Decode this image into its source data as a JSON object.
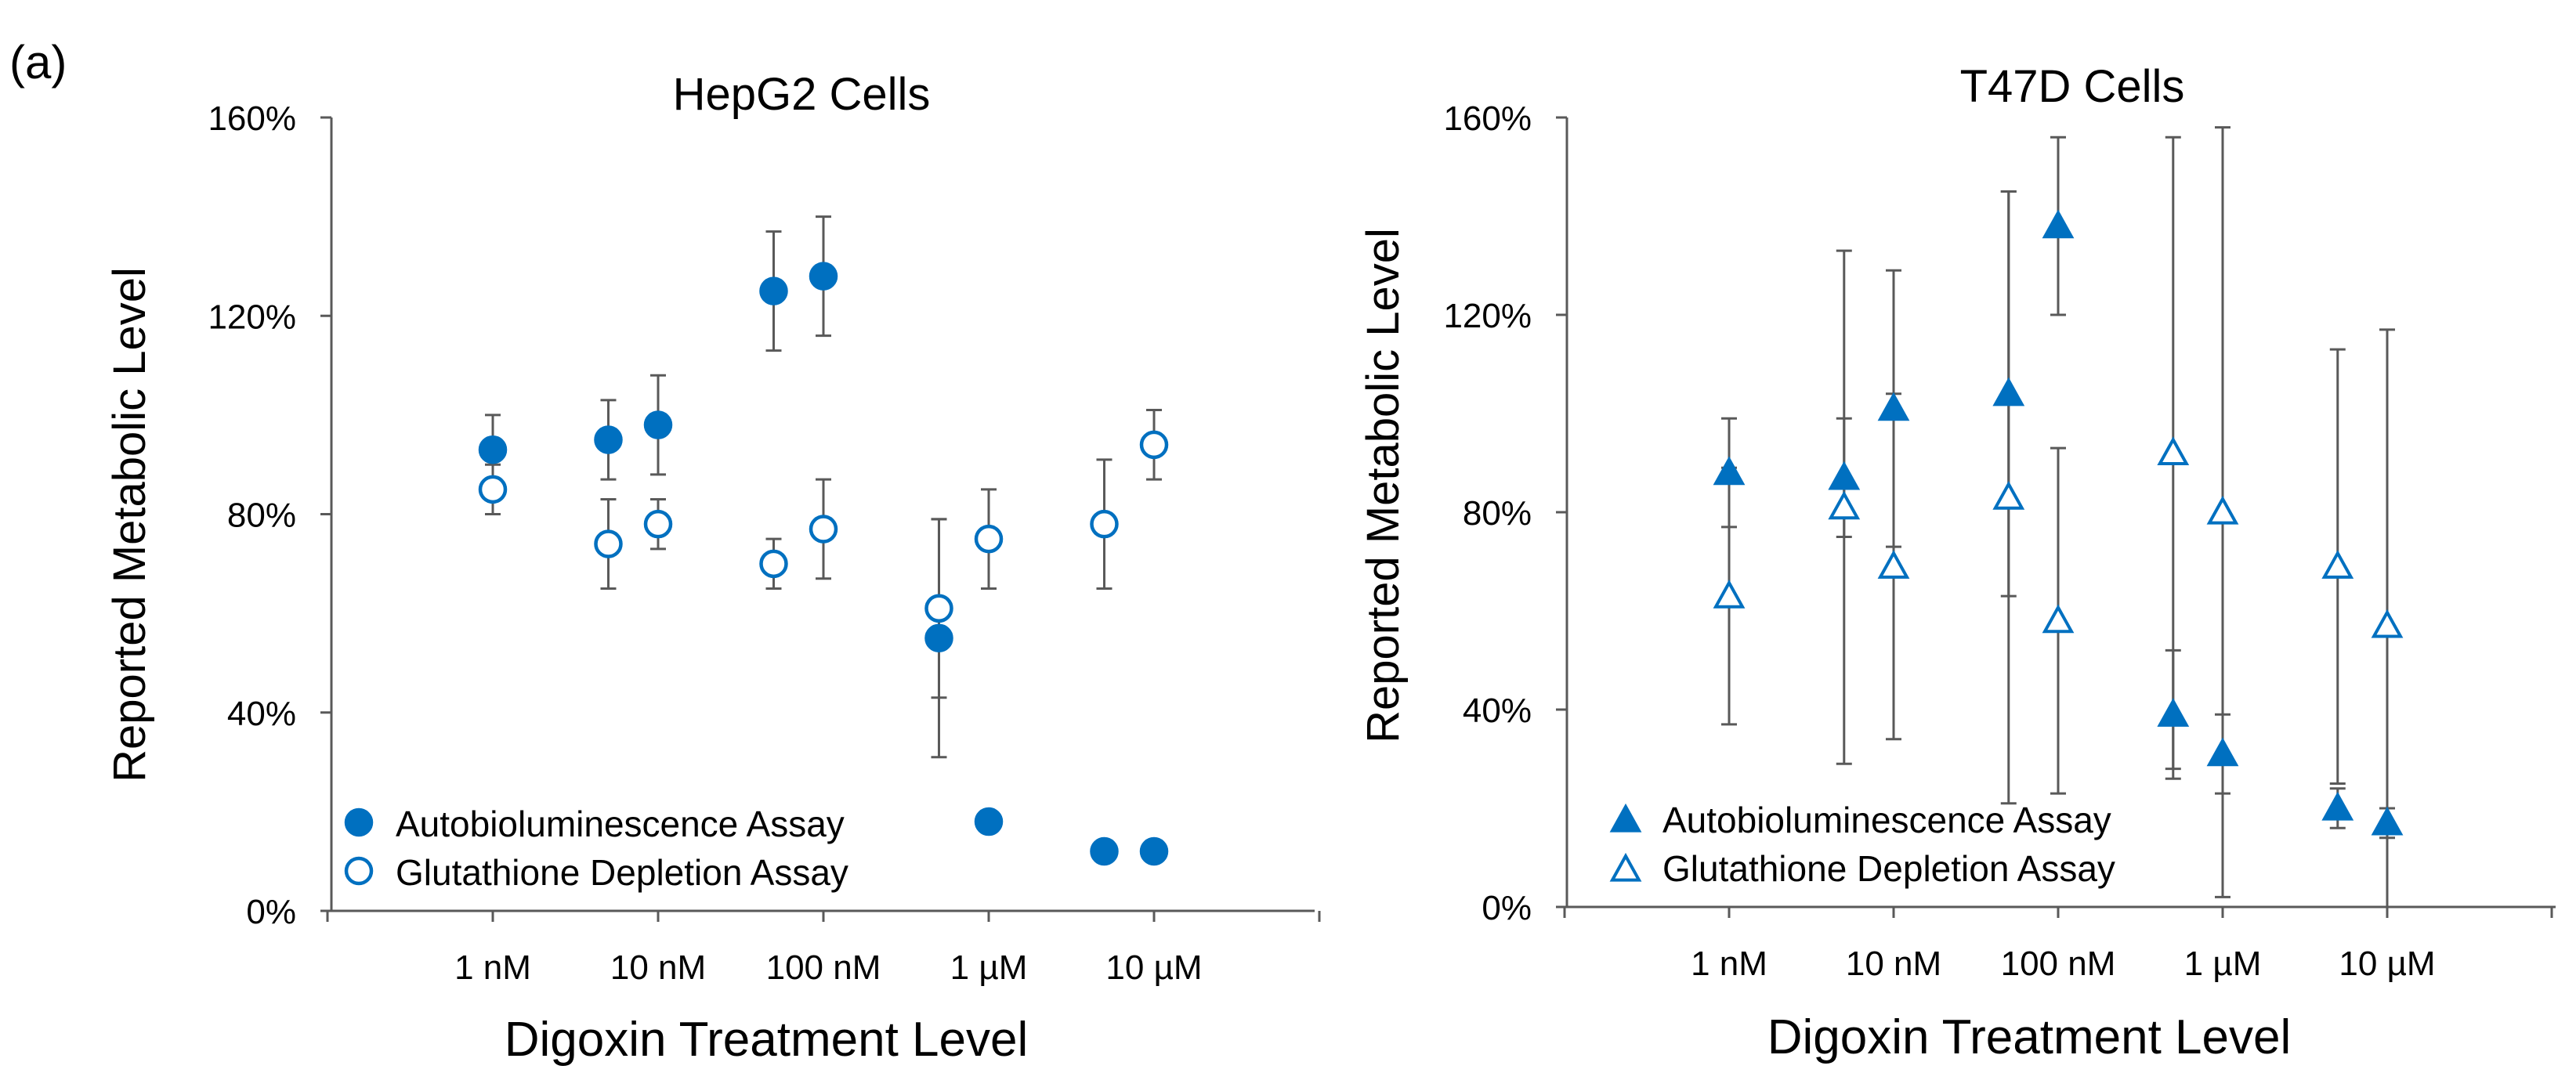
{
  "panel_label": "(a)",
  "accent_color": "#0070C0",
  "chart_data": [
    {
      "type": "scatter",
      "title": "HepG2 Cells",
      "xlabel": "Digoxin Treatment Level",
      "ylabel": "Reported Metabolic Level",
      "x_scale": "log",
      "xlim": [
        "0.1 nM",
        "100 µM"
      ],
      "ylim": [
        0,
        1.6
      ],
      "y_ticks": [
        "0%",
        "40%",
        "80%",
        "120%",
        "160%"
      ],
      "x_ticks": [
        {
          "value": 1,
          "label": "1 nM"
        },
        {
          "value": 10,
          "label": "10 nM"
        },
        {
          "value": 100,
          "label": "100 nM"
        },
        {
          "value": 1000,
          "label": "1 µM"
        },
        {
          "value": 10000,
          "label": "10 µM"
        }
      ],
      "grid": false,
      "legend_position": "bottom-left",
      "series": [
        {
          "name": "Autobioluminescence Assay",
          "marker": "filled-circle",
          "color": "#0070C0",
          "x": [
            1,
            5,
            10,
            50,
            100,
            500,
            1000,
            5000,
            10000
          ],
          "y": [
            0.93,
            0.95,
            0.98,
            1.25,
            1.28,
            0.55,
            0.18,
            0.12,
            0.12
          ],
          "err": [
            0.07,
            0.08,
            0.1,
            0.12,
            0.12,
            0.24,
            0.02,
            0,
            0
          ]
        },
        {
          "name": "Glutathione Depletion Assay",
          "marker": "open-circle",
          "color": "#0070C0",
          "x": [
            1,
            5,
            10,
            50,
            100,
            500,
            1000,
            5000,
            10000
          ],
          "y": [
            0.85,
            0.74,
            0.78,
            0.7,
            0.77,
            0.61,
            0.75,
            0.78,
            0.94
          ],
          "err": [
            0.05,
            0.09,
            0.05,
            0.05,
            0.1,
            0.18,
            0.1,
            0.13,
            0.07
          ]
        }
      ]
    },
    {
      "type": "scatter",
      "title": "T47D Cells",
      "xlabel": "Digoxin Treatment Level",
      "ylabel": "Reported Metabolic Level",
      "x_scale": "log",
      "xlim": [
        "0.1 nM",
        "100 µM"
      ],
      "ylim": [
        0,
        1.6
      ],
      "y_ticks": [
        "0%",
        "40%",
        "80%",
        "120%",
        "160%"
      ],
      "x_ticks": [
        {
          "value": 1,
          "label": "1 nM"
        },
        {
          "value": 10,
          "label": "10 nM"
        },
        {
          "value": 100,
          "label": "100 nM"
        },
        {
          "value": 1000,
          "label": "1 µM"
        },
        {
          "value": 10000,
          "label": "10 µM"
        }
      ],
      "grid": false,
      "legend_position": "bottom-left",
      "series": [
        {
          "name": "Autobioluminescence Assay",
          "marker": "filled-triangle",
          "color": "#0070C0",
          "x": [
            1,
            5,
            10,
            50,
            100,
            500,
            1000,
            5000,
            10000
          ],
          "y": [
            0.88,
            0.87,
            1.01,
            1.04,
            1.38,
            0.39,
            0.31,
            0.2,
            0.17
          ],
          "err": [
            0.11,
            0.12,
            0.28,
            0.41,
            0.18,
            0.13,
            0.08,
            0.04,
            0.03
          ]
        },
        {
          "name": "Glutathione Depletion Assay",
          "marker": "open-triangle",
          "color": "#0070C0",
          "x": [
            1,
            5,
            10,
            50,
            100,
            500,
            1000,
            5000,
            10000
          ],
          "y": [
            0.63,
            0.81,
            0.69,
            0.83,
            0.58,
            0.92,
            0.8,
            0.69,
            0.57
          ],
          "err": [
            0.26,
            0.52,
            0.35,
            0.62,
            0.35,
            0.64,
            0.78,
            0.44,
            0.6
          ]
        }
      ]
    }
  ]
}
